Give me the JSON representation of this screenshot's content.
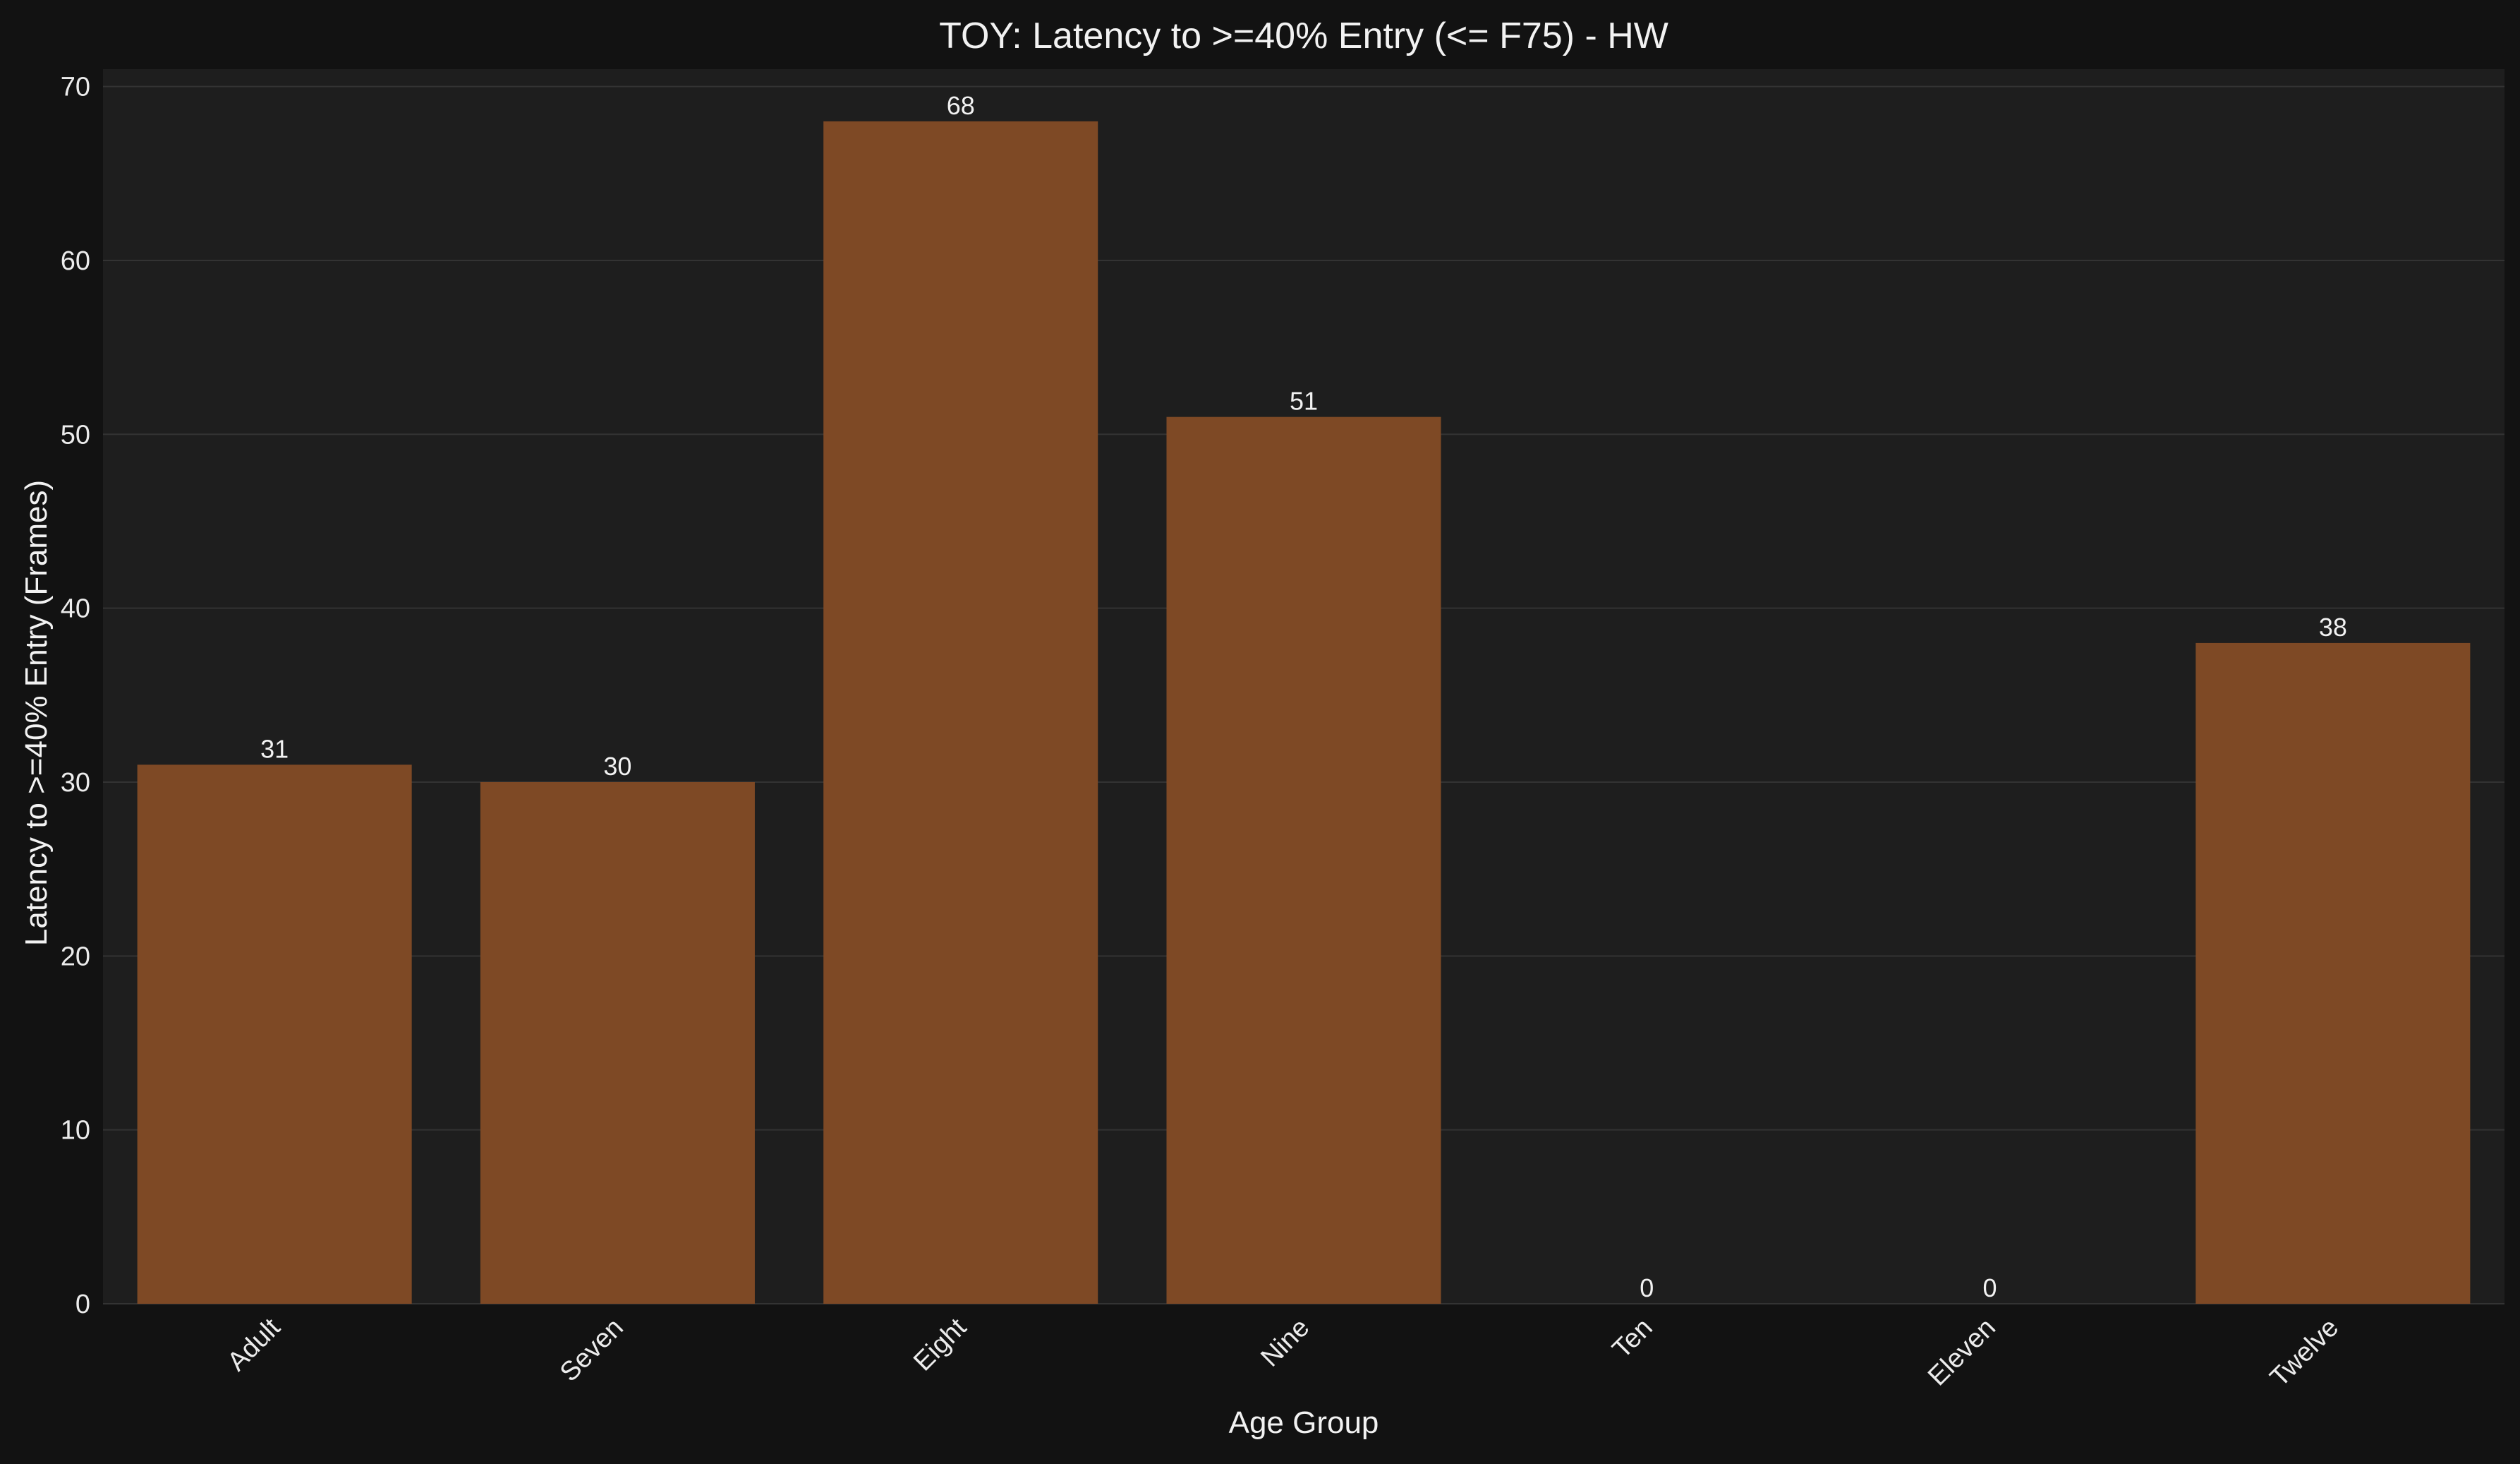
{
  "chart_data": {
    "type": "bar",
    "title": "TOY: Latency to >=40% Entry (<= F75) - HW",
    "xlabel": "Age Group",
    "ylabel": "Latency to >=40% Entry (Frames)",
    "categories": [
      "Adult",
      "Seven",
      "Eight",
      "Nine",
      "Ten",
      "Eleven",
      "Twelve"
    ],
    "values": [
      31,
      30,
      68,
      51,
      0,
      0,
      38
    ],
    "data_labels": [
      "31",
      "30",
      "68",
      "51",
      "0",
      "0",
      "38"
    ],
    "ylim": [
      0,
      71
    ],
    "yticks": [
      0,
      10,
      20,
      30,
      40,
      50,
      60,
      70
    ],
    "ytick_labels": [
      "0",
      "10",
      "20",
      "30",
      "40",
      "50",
      "60",
      "70"
    ],
    "grid": true,
    "legend": "none",
    "colors": {
      "figure_background": "#121212",
      "plot_background": "#1e1e1e",
      "bar": "#7e4925",
      "grid": "#333333",
      "text": "#f2f2f2"
    }
  }
}
